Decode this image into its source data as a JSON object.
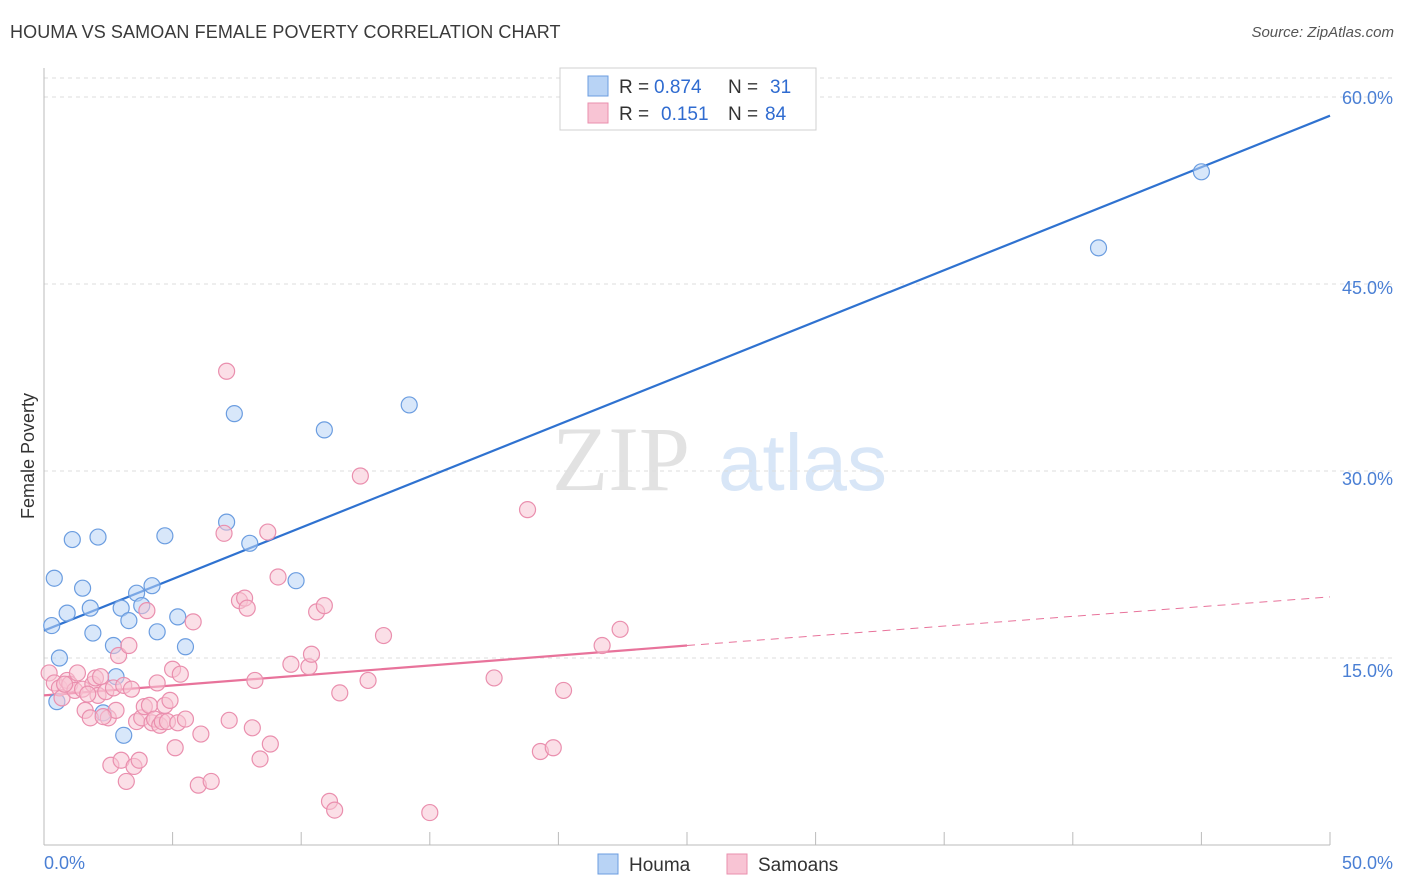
{
  "title": "HOUMA VS SAMOAN FEMALE POVERTY CORRELATION CHART",
  "source": "Source: ZipAtlas.com",
  "watermark": {
    "zip": "ZIP",
    "atlas": "atlas"
  },
  "colors": {
    "houma_fill": "#b8d3f5",
    "houma_stroke": "#6b9de0",
    "houma_line": "#2f72d0",
    "samoan_fill": "#f8c4d4",
    "samoan_stroke": "#ea8fae",
    "samoan_line": "#e8739b",
    "tick": "#4a7fd4",
    "grid": "#dddddd"
  },
  "legend": {
    "rows": [
      {
        "r_label": "R =",
        "r_value": "0.874",
        "n_label": "N =",
        "n_value": "31"
      },
      {
        "r_label": "R =",
        "r_value": "0.151",
        "n_label": "N =",
        "n_value": "84"
      }
    ]
  },
  "chart_data": {
    "type": "scatter",
    "title": "HOUMA VS SAMOAN FEMALE POVERTY CORRELATION CHART",
    "xlabel": "",
    "ylabel": "Female Poverty",
    "xlim": [
      0,
      50
    ],
    "ylim": [
      0,
      60
    ],
    "x_tick_labels": [
      "0.0%",
      "50.0%"
    ],
    "y_ticks": [
      15,
      30,
      45,
      60
    ],
    "y_tick_labels": [
      "15.0%",
      "30.0%",
      "45.0%",
      "60.0%"
    ],
    "legend_bottom": [
      "Houma",
      "Samoans"
    ],
    "series": [
      {
        "name": "Houma",
        "r": 0.874,
        "n": 31,
        "trend": {
          "x0": 0,
          "y0": 17.2,
          "x1": 50,
          "y1": 58.5
        },
        "points": [
          [
            0.3,
            17.6
          ],
          [
            0.6,
            15.0
          ],
          [
            0.9,
            18.6
          ],
          [
            1.1,
            24.5
          ],
          [
            1.5,
            20.6
          ],
          [
            1.8,
            19.0
          ],
          [
            1.9,
            17.0
          ],
          [
            2.1,
            24.7
          ],
          [
            2.3,
            10.6
          ],
          [
            2.7,
            16.0
          ],
          [
            2.8,
            13.5
          ],
          [
            3.0,
            19.0
          ],
          [
            3.1,
            8.8
          ],
          [
            3.3,
            18.0
          ],
          [
            3.6,
            20.2
          ],
          [
            3.8,
            19.2
          ],
          [
            4.2,
            20.8
          ],
          [
            4.4,
            17.1
          ],
          [
            4.7,
            24.8
          ],
          [
            5.2,
            18.3
          ],
          [
            5.5,
            15.9
          ],
          [
            7.1,
            25.9
          ],
          [
            7.4,
            34.6
          ],
          [
            8.0,
            24.2
          ],
          [
            9.8,
            21.2
          ],
          [
            10.9,
            33.3
          ],
          [
            14.2,
            35.3
          ],
          [
            41.0,
            47.9
          ],
          [
            45.0,
            54.0
          ],
          [
            0.4,
            21.4
          ],
          [
            0.5,
            11.5
          ]
        ]
      },
      {
        "name": "Samoans",
        "r": 0.151,
        "n": 84,
        "trend": {
          "x0": 0,
          "y0": 12.0,
          "x1": 25,
          "y1": 16.0
        },
        "trend_dashed": {
          "x0": 25,
          "y0": 16.0,
          "x1": 50,
          "y1": 19.9
        },
        "points": [
          [
            0.2,
            13.8
          ],
          [
            0.4,
            13.0
          ],
          [
            0.6,
            12.6
          ],
          [
            0.7,
            11.8
          ],
          [
            0.9,
            13.2
          ],
          [
            1.0,
            12.9
          ],
          [
            1.2,
            12.4
          ],
          [
            1.3,
            13.8
          ],
          [
            1.5,
            12.5
          ],
          [
            1.6,
            10.8
          ],
          [
            1.8,
            10.2
          ],
          [
            1.9,
            12.9
          ],
          [
            2.0,
            13.4
          ],
          [
            2.1,
            12.0
          ],
          [
            2.2,
            13.5
          ],
          [
            2.4,
            12.3
          ],
          [
            2.5,
            10.2
          ],
          [
            2.6,
            6.4
          ],
          [
            2.7,
            12.6
          ],
          [
            2.8,
            10.8
          ],
          [
            2.9,
            15.2
          ],
          [
            3.0,
            6.8
          ],
          [
            3.1,
            12.8
          ],
          [
            3.2,
            5.1
          ],
          [
            3.3,
            16.0
          ],
          [
            3.5,
            6.3
          ],
          [
            3.6,
            9.9
          ],
          [
            3.7,
            6.8
          ],
          [
            3.8,
            10.2
          ],
          [
            3.9,
            11.1
          ],
          [
            4.0,
            18.8
          ],
          [
            4.1,
            11.2
          ],
          [
            4.2,
            9.8
          ],
          [
            4.3,
            10.1
          ],
          [
            4.4,
            13.0
          ],
          [
            4.5,
            9.6
          ],
          [
            4.6,
            9.9
          ],
          [
            4.7,
            11.2
          ],
          [
            4.8,
            9.9
          ],
          [
            4.9,
            11.6
          ],
          [
            5.0,
            14.1
          ],
          [
            5.1,
            7.8
          ],
          [
            5.2,
            9.8
          ],
          [
            5.3,
            13.7
          ],
          [
            5.5,
            10.1
          ],
          [
            5.8,
            17.9
          ],
          [
            6.0,
            4.8
          ],
          [
            6.1,
            8.9
          ],
          [
            6.5,
            5.1
          ],
          [
            7.0,
            25.0
          ],
          [
            7.1,
            38.0
          ],
          [
            7.2,
            10.0
          ],
          [
            7.6,
            19.6
          ],
          [
            7.8,
            19.8
          ],
          [
            7.9,
            19.0
          ],
          [
            8.1,
            9.4
          ],
          [
            8.2,
            13.2
          ],
          [
            8.4,
            6.9
          ],
          [
            8.7,
            25.1
          ],
          [
            8.8,
            8.1
          ],
          [
            9.1,
            21.5
          ],
          [
            9.6,
            14.5
          ],
          [
            10.3,
            14.3
          ],
          [
            10.4,
            15.3
          ],
          [
            10.6,
            18.7
          ],
          [
            10.9,
            19.2
          ],
          [
            11.1,
            3.5
          ],
          [
            11.3,
            2.8
          ],
          [
            11.5,
            12.2
          ],
          [
            12.3,
            29.6
          ],
          [
            12.6,
            13.2
          ],
          [
            13.2,
            16.8
          ],
          [
            15.0,
            2.6
          ],
          [
            17.5,
            13.4
          ],
          [
            18.8,
            26.9
          ],
          [
            19.3,
            7.5
          ],
          [
            19.8,
            7.8
          ],
          [
            20.2,
            12.4
          ],
          [
            21.7,
            16.0
          ],
          [
            22.4,
            17.3
          ],
          [
            1.7,
            12.1
          ],
          [
            2.3,
            10.3
          ],
          [
            3.4,
            12.5
          ],
          [
            0.8,
            12.9
          ]
        ]
      }
    ]
  }
}
